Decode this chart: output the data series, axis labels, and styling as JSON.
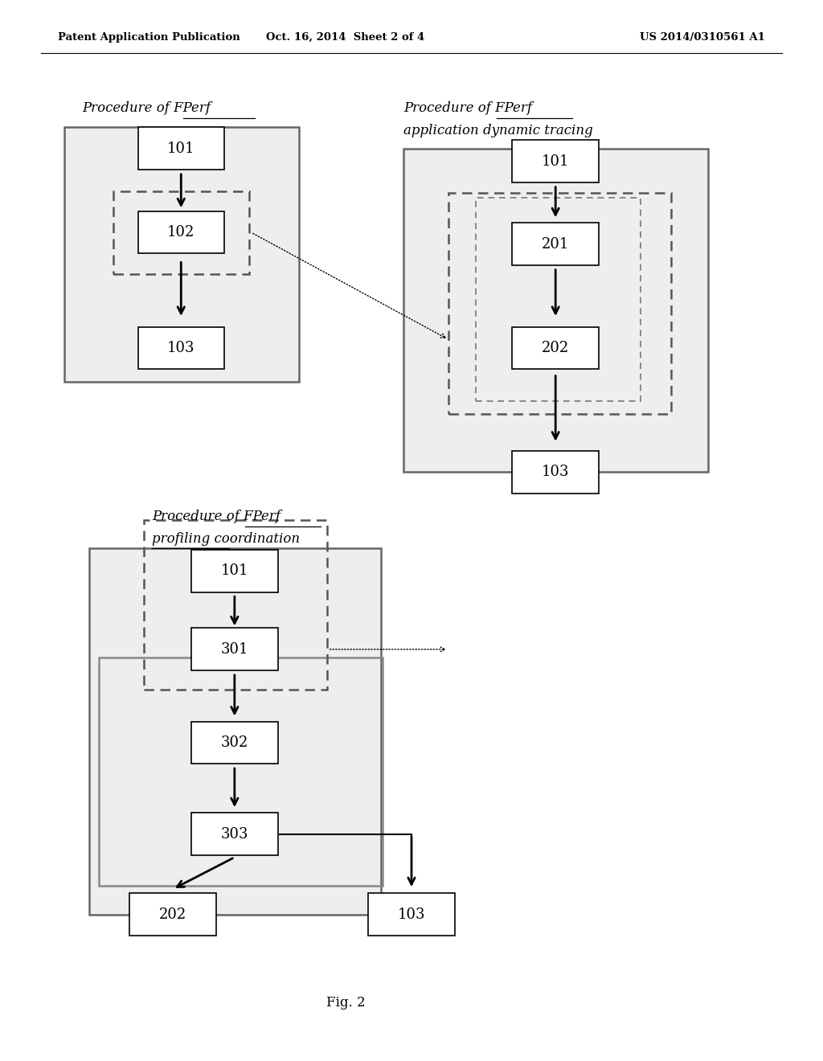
{
  "bg_color": "#ffffff",
  "header_left": "Patent Application Publication",
  "header_mid": "Oct. 16, 2014  Sheet 2 of 4",
  "header_right": "US 2014/0310561 A1",
  "fig_label": "Fig. 2"
}
